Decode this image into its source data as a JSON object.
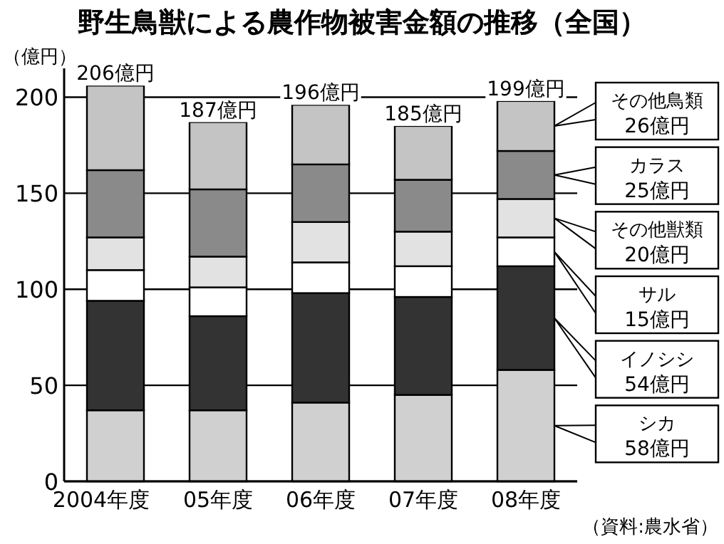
{
  "chart_data": {
    "type": "bar",
    "stacked": true,
    "title": "野生鳥獣による農作物被害金額の推移（全国）",
    "ylabel": "（億円）",
    "categories": [
      "2004年度",
      "05年度",
      "06年度",
      "07年度",
      "08年度"
    ],
    "series": [
      {
        "name": "シカ",
        "color": "#d0d0d0",
        "values": [
          37,
          37,
          41,
          45,
          58
        ]
      },
      {
        "name": "イノシシ",
        "color": "#333333",
        "values": [
          57,
          49,
          57,
          51,
          54
        ]
      },
      {
        "name": "サル",
        "color": "#ffffff",
        "values": [
          16,
          15,
          16,
          16,
          15
        ]
      },
      {
        "name": "その他獣類",
        "color": "#e2e2e2",
        "values": [
          17,
          16,
          21,
          18,
          20
        ]
      },
      {
        "name": "カラス",
        "color": "#8a8a8a",
        "values": [
          35,
          35,
          30,
          27,
          25
        ]
      },
      {
        "name": "その他鳥類",
        "color": "#c4c4c4",
        "values": [
          44,
          35,
          31,
          28,
          26
        ]
      }
    ],
    "totals": [
      "206億円",
      "187億円",
      "196億円",
      "185億円",
      "199億円"
    ],
    "ylim": [
      0,
      215
    ],
    "yticks": [
      0,
      50,
      100,
      150,
      200
    ],
    "grid": "y",
    "legend": "right",
    "annotations": [
      "26億円",
      "25億円",
      "20億円",
      "15億円",
      "54億円",
      "58億円",
      "（資料:農水省）"
    ]
  }
}
